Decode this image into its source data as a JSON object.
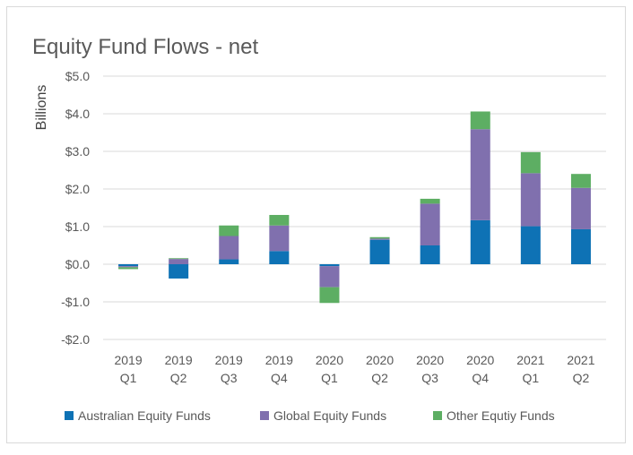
{
  "chart_data": {
    "type": "bar",
    "stacked": true,
    "title": "Equity Fund Flows - net",
    "ylabel": "Billions",
    "xlabel": "",
    "ylim": [
      -2.0,
      5.0
    ],
    "yticks": [
      -2.0,
      -1.0,
      0.0,
      1.0,
      2.0,
      3.0,
      4.0,
      5.0
    ],
    "ytick_labels": [
      "-$2.0",
      "-$1.0",
      "$0.0",
      "$1.0",
      "$2.0",
      "$3.0",
      "$4.0",
      "$5.0"
    ],
    "grid": "horizontal",
    "legend_position": "bottom",
    "categories": [
      [
        "2019",
        "Q1"
      ],
      [
        "2019",
        "Q2"
      ],
      [
        "2019",
        "Q3"
      ],
      [
        "2019",
        "Q4"
      ],
      [
        "2020",
        "Q1"
      ],
      [
        "2020",
        "Q2"
      ],
      [
        "2020",
        "Q3"
      ],
      [
        "2020",
        "Q4"
      ],
      [
        "2021",
        "Q1"
      ],
      [
        "2021",
        "Q2"
      ]
    ],
    "series": [
      {
        "name": "Australian Equity Funds",
        "color": "#0E72B5",
        "values": [
          -0.05,
          -0.38,
          0.13,
          0.35,
          -0.05,
          0.65,
          0.5,
          1.17,
          1.01,
          0.93
        ]
      },
      {
        "name": "Global Equity Funds",
        "color": "#8070AE",
        "values": [
          -0.03,
          0.14,
          0.62,
          0.68,
          -0.56,
          0.03,
          1.11,
          2.42,
          1.41,
          1.1
        ]
      },
      {
        "name": "Other Equtiy Funds",
        "color": "#5DAE63",
        "values": [
          -0.05,
          0.02,
          0.28,
          0.28,
          -0.42,
          0.04,
          0.13,
          0.47,
          0.56,
          0.37
        ]
      }
    ]
  }
}
